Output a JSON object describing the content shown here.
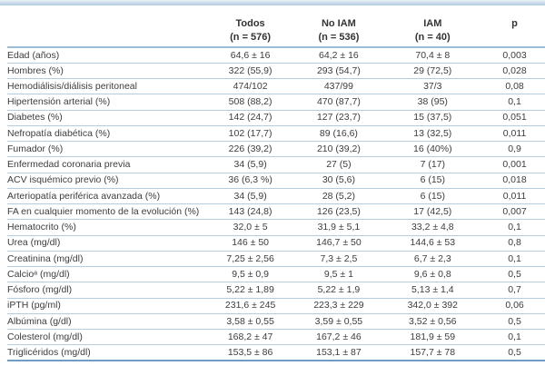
{
  "colors": {
    "divider": "#b6cde0",
    "header_rule": "#9cbcd6",
    "bottom_rule": "#6f9dc6",
    "top_band": "#b4cce0",
    "text": "#3d3d3d"
  },
  "table": {
    "header": {
      "columns": [
        {
          "line1": "Todos",
          "line2": "(n = 576)"
        },
        {
          "line1": "No IAM",
          "line2": "(n = 536)"
        },
        {
          "line1": "IAM",
          "line2": "(n = 40)"
        },
        {
          "line1": "p",
          "line2": ""
        }
      ]
    },
    "rows": [
      {
        "label": "Edad (años)",
        "todos": "64,6 ± 16",
        "no_iam": "64,2 ± 16",
        "iam": "70,4 ± 8",
        "p": "0,003"
      },
      {
        "label": "Hombres (%)",
        "todos": "322 (55,9)",
        "no_iam": "293 (54,7)",
        "iam": "29 (72,5)",
        "p": "0,028"
      },
      {
        "label": "Hemodiálisis/diálisis peritoneal",
        "todos": "474/102",
        "no_iam": "437/99",
        "iam": "37/3",
        "p": "0,08"
      },
      {
        "label": "Hipertensión arterial (%)",
        "todos": "508 (88,2)",
        "no_iam": "470 (87,7)",
        "iam": "38 (95)",
        "p": "0,1"
      },
      {
        "label": "Diabetes (%)",
        "todos": "142 (24,7)",
        "no_iam": "127 (23,7)",
        "iam": "15 (37,5)",
        "p": "0,051"
      },
      {
        "label": "Nefropatía diabética (%)",
        "todos": "102 (17,7)",
        "no_iam": "89 (16,6)",
        "iam": "13 (32,5)",
        "p": "0,011"
      },
      {
        "label": "Fumador (%)",
        "todos": "226 (39,2)",
        "no_iam": "210 (39,2)",
        "iam": "16 (40%)",
        "p": "0,9"
      },
      {
        "label": "Enfermedad coronaria previa",
        "todos": "34 (5,9)",
        "no_iam": "27 (5)",
        "iam": "7 (17)",
        "p": "0,001"
      },
      {
        "label": "ACV isquémico previo (%)",
        "todos": "36 (6,3 %)",
        "no_iam": "30 (5,6)",
        "iam": "6 (15)",
        "p": "0,018"
      },
      {
        "label": "Arteriopatía periférica avanzada (%)",
        "todos": "34 (5,9)",
        "no_iam": "28 (5,2)",
        "iam": "6 (15)",
        "p": "0,011"
      },
      {
        "label": "FA en cualquier momento de la evolución (%)",
        "todos": "143 (24,8)",
        "no_iam": "126 (23,5)",
        "iam": "17 (42,5)",
        "p": "0,007"
      },
      {
        "label": "Hematocrito (%)",
        "todos": "32,0 ± 5",
        "no_iam": "31,9 ± 5,1",
        "iam": "33,2 ± 4,8",
        "p": "0,1"
      },
      {
        "label": "Urea (mg/dl)",
        "todos": "146 ± 50",
        "no_iam": "146,7 ± 50",
        "iam": "144,6 ± 53",
        "p": "0,8"
      },
      {
        "label": "Creatinina (mg/dl)",
        "todos": "7,25 ± 2,56",
        "no_iam": "7,3 ± 2,5",
        "iam": "6,7 ± 2,3",
        "p": "0,1"
      },
      {
        "label": "Calcioᵃ (mg/dl)",
        "todos": "9,5 ± 0,9",
        "no_iam": "9,5 ± 1",
        "iam": "9,6 ± 0,8",
        "p": "0,5"
      },
      {
        "label": "Fósforo (mg/dl)",
        "todos": "5,22 ± 1,89",
        "no_iam": "5,22 ± 1,9",
        "iam": "5,13 ± 1,4",
        "p": "0,7"
      },
      {
        "label": "iPTH (pg/ml)",
        "todos": "231,6 ± 245",
        "no_iam": "223,3 ± 229",
        "iam": "342,0 ± 392",
        "p": "0,06"
      },
      {
        "label": "Albúmina (g/dl)",
        "todos": "3,58 ± 0,55",
        "no_iam": "3,59 ± 0,55",
        "iam": "3,52 ± 0,56",
        "p": "0,5"
      },
      {
        "label": "Colesterol (mg/dl)",
        "todos": "168,2 ± 47",
        "no_iam": "167,2 ± 46",
        "iam": "181,9 ± 59",
        "p": "0,1"
      },
      {
        "label": "Triglicéridos (mg/dl)",
        "todos": "153,5 ± 86",
        "no_iam": "153,1 ± 87",
        "iam": "157,7 ± 78",
        "p": "0,5"
      }
    ]
  }
}
